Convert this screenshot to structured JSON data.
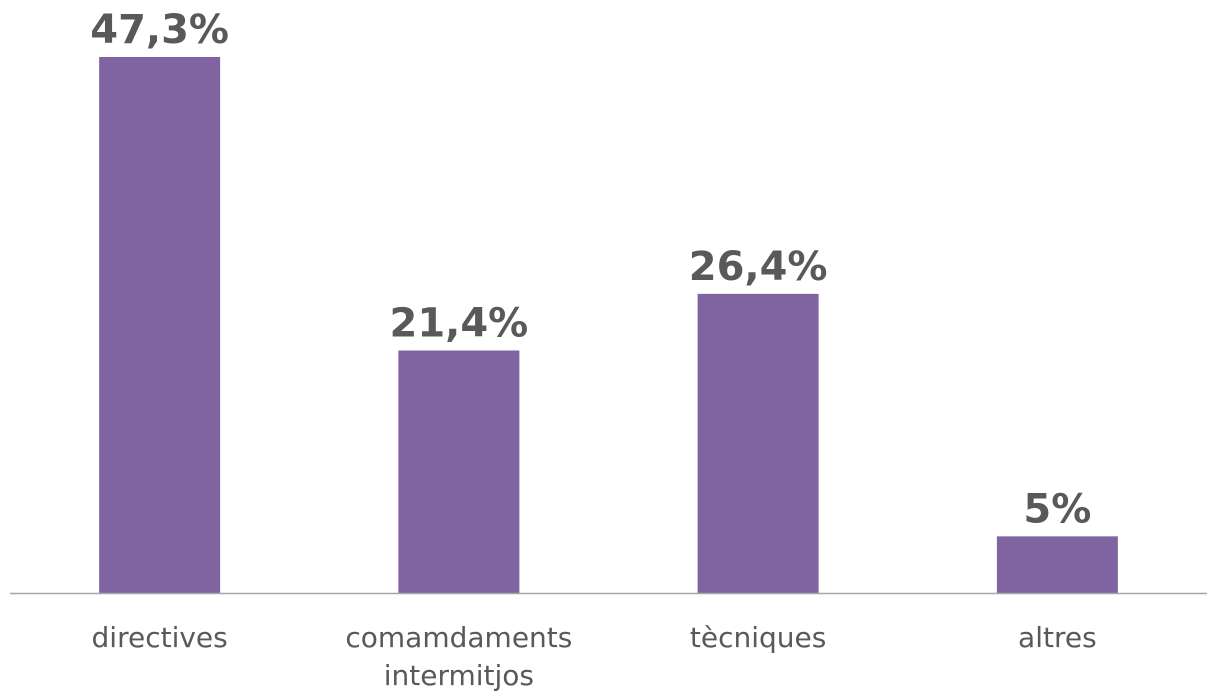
{
  "chart_data": {
    "type": "bar",
    "categories": [
      [
        "directives"
      ],
      [
        "comamdaments",
        "intermitjos"
      ],
      [
        "tècniques"
      ],
      [
        "altres"
      ]
    ],
    "values": [
      47.3,
      21.4,
      26.4,
      5
    ],
    "data_labels": [
      "47,3%",
      "21,4%",
      "26,4%",
      "5%"
    ],
    "title": "",
    "xlabel": "",
    "ylabel": "",
    "ylim": [
      0,
      47.3
    ],
    "grid": false,
    "legend": "none",
    "colors": {
      "bar": "#8064a2",
      "data_label": "#595959",
      "tick_label": "#595959",
      "axis": "#a6a6a6"
    }
  }
}
